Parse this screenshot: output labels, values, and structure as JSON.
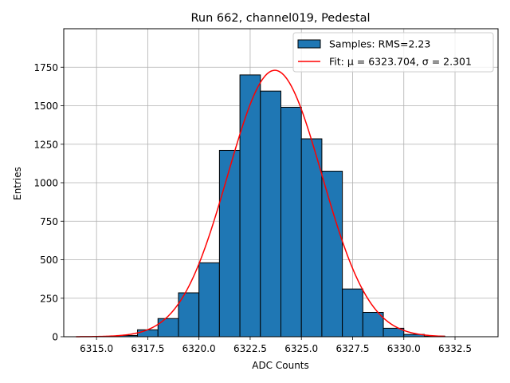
{
  "chart_data": {
    "type": "bar",
    "title": "Run 662, channel019, Pedestal",
    "xlabel": "ADC Counts",
    "ylabel": "Entries",
    "xlim": [
      6313.4,
      6334.6
    ],
    "ylim": [
      0,
      2000
    ],
    "grid": true,
    "legend_position": "top-right",
    "x_ticks": [
      "6315.0",
      "6317.5",
      "6320.0",
      "6322.5",
      "6325.0",
      "6327.5",
      "6330.0",
      "6332.5"
    ],
    "y_ticks": [
      "0",
      "250",
      "500",
      "750",
      "1000",
      "1250",
      "1500",
      "1750"
    ],
    "bin_width": 1,
    "histogram": [
      {
        "x": 6316.5,
        "count": 8
      },
      {
        "x": 6317.5,
        "count": 45
      },
      {
        "x": 6318.5,
        "count": 118
      },
      {
        "x": 6319.5,
        "count": 285
      },
      {
        "x": 6320.5,
        "count": 480
      },
      {
        "x": 6321.5,
        "count": 1210
      },
      {
        "x": 6322.5,
        "count": 1700
      },
      {
        "x": 6323.5,
        "count": 1595
      },
      {
        "x": 6324.5,
        "count": 1490
      },
      {
        "x": 6325.5,
        "count": 1285
      },
      {
        "x": 6326.5,
        "count": 1075
      },
      {
        "x": 6327.5,
        "count": 310
      },
      {
        "x": 6328.5,
        "count": 158
      },
      {
        "x": 6329.5,
        "count": 55
      },
      {
        "x": 6330.5,
        "count": 15
      },
      {
        "x": 6331.5,
        "count": 4
      }
    ],
    "fit": {
      "mu": 6323.704,
      "sigma": 2.301,
      "amplitude": 1730,
      "x_range": [
        6314.0,
        6332.0
      ]
    },
    "legend": [
      {
        "label": "Samples: RMS=2.23",
        "color": "#1f77b4",
        "kind": "patch"
      },
      {
        "label": "Fit: μ = 6323.704, σ = 2.301",
        "color": "#ff0000",
        "kind": "line"
      }
    ],
    "colors": {
      "bar_fill": "#1f77b4",
      "bar_edge": "#000000",
      "fit_line": "#ff0000",
      "grid": "#b0b0b0"
    }
  }
}
